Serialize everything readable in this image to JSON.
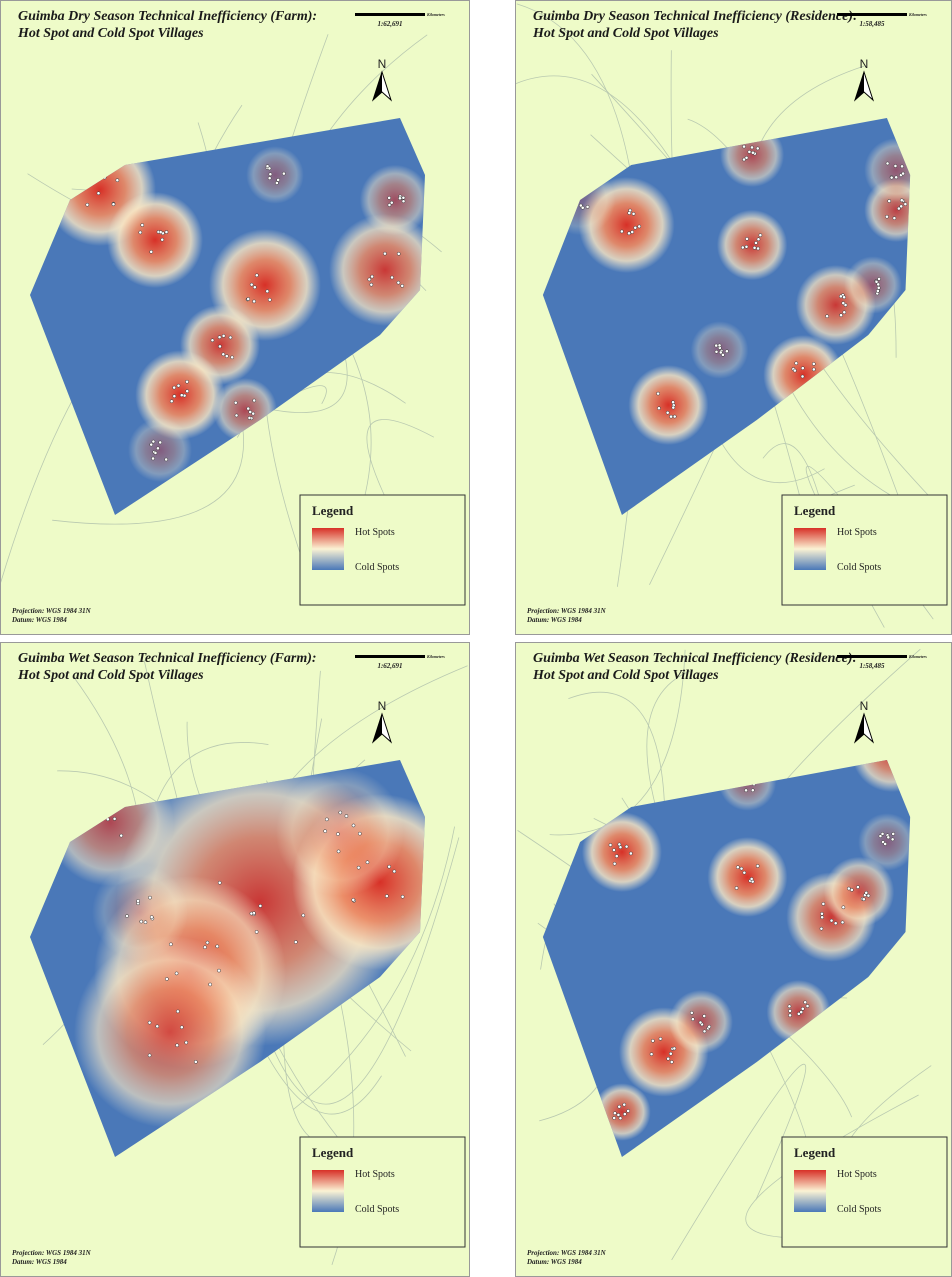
{
  "panels": [
    {
      "title": [
        "Guimba Dry Season Technical Inefficiency (Farm):",
        "Hot Spot and Cold Spot Villages"
      ],
      "scale": "1:62,691",
      "scale_unit": "Kilometers",
      "north": "N",
      "legend": {
        "title": "Legend",
        "hot": "Hot Spots",
        "cold": "Cold Spots"
      },
      "projection": "Projection: WGS 1984 31N",
      "datum": "Datum: WGS 1984"
    },
    {
      "title": [
        "Guimba Dry Season Technical Inefficiency (Residence):",
        "Hot Spot and Cold Spot Villages"
      ],
      "scale": "1:58,485",
      "scale_unit": "Kilometers",
      "north": "N",
      "legend": {
        "title": "Legend",
        "hot": "Hot Spots",
        "cold": "Cold Spots"
      },
      "projection": "Projection: WGS 1984 31N",
      "datum": "Datum: WGS 1984"
    },
    {
      "title": [
        "Guimba Wet Season Technical Inefficiency (Farm):",
        "Hot Spot and Cold Spot Villages"
      ],
      "scale": "1:62,691",
      "scale_unit": "Kilometers",
      "north": "N",
      "legend": {
        "title": "Legend",
        "hot": "Hot Spots",
        "cold": "Cold Spots"
      },
      "projection": "Projection: WGS 1984 31N",
      "datum": "Datum: WGS 1984"
    },
    {
      "title": [
        "Guimba Wet Season Technical Inefficiency (Residence):",
        "Hot Spot and Cold Spot Villages"
      ],
      "scale": "1:58,485",
      "scale_unit": "Kilometers",
      "north": "N",
      "legend": {
        "title": "Legend",
        "hot": "Hot Spots",
        "cold": "Cold Spots"
      },
      "projection": "Projection: WGS 1984 31N",
      "datum": "Datum: WGS 1984"
    }
  ]
}
